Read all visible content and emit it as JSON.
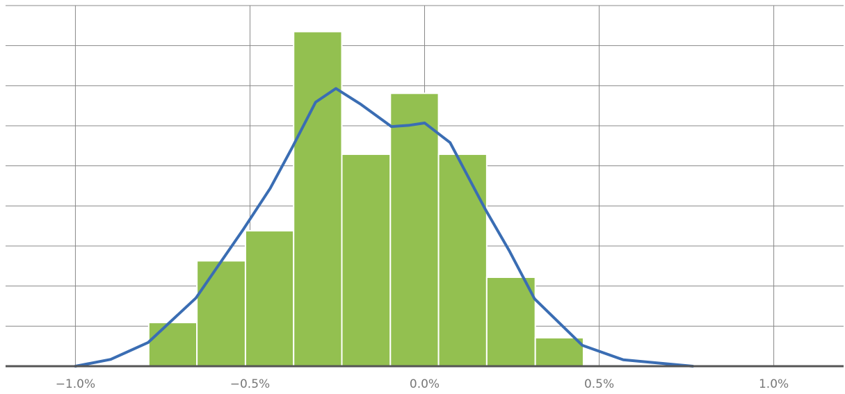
{
  "chart_data": {
    "type": "histogram",
    "bins": [
      -0.79,
      -0.652,
      -0.513,
      -0.375,
      -0.237,
      -0.098,
      0.04,
      0.178,
      0.317,
      0.455
    ],
    "values": [
      1.09,
      2.63,
      3.38,
      8.35,
      5.29,
      6.81,
      5.29,
      2.22,
      0.71
    ],
    "color": "#93c050",
    "line": {
      "color": "#3a6db3",
      "x": [
        -1.0,
        -0.899,
        -0.792,
        -0.655,
        -0.518,
        -0.442,
        -0.379,
        -0.312,
        -0.254,
        -0.185,
        -0.095,
        -0.046,
        0.0,
        0.073,
        0.173,
        0.242,
        0.315,
        0.452,
        0.569,
        0.768
      ],
      "values": [
        0,
        0.17,
        0.59,
        1.7,
        3.43,
        4.44,
        5.46,
        6.59,
        6.93,
        6.55,
        5.98,
        6.01,
        6.07,
        5.58,
        3.93,
        2.89,
        1.68,
        0.52,
        0.16,
        0
      ]
    },
    "xlim": [
      -1.2,
      1.2
    ],
    "xticks": [
      {
        "value": -1.0,
        "label": "−1.0%"
      },
      {
        "value": -0.5,
        "label": "−0.5%"
      },
      {
        "value": 0.0,
        "label": "0.0%"
      },
      {
        "value": 0.5,
        "label": "0.5%"
      },
      {
        "value": 1.0,
        "label": "1.0%"
      }
    ],
    "ylim": [
      0,
      9
    ],
    "yticks": [
      0,
      1,
      2,
      3,
      4,
      5,
      6,
      7,
      8,
      9
    ],
    "grid": true
  }
}
